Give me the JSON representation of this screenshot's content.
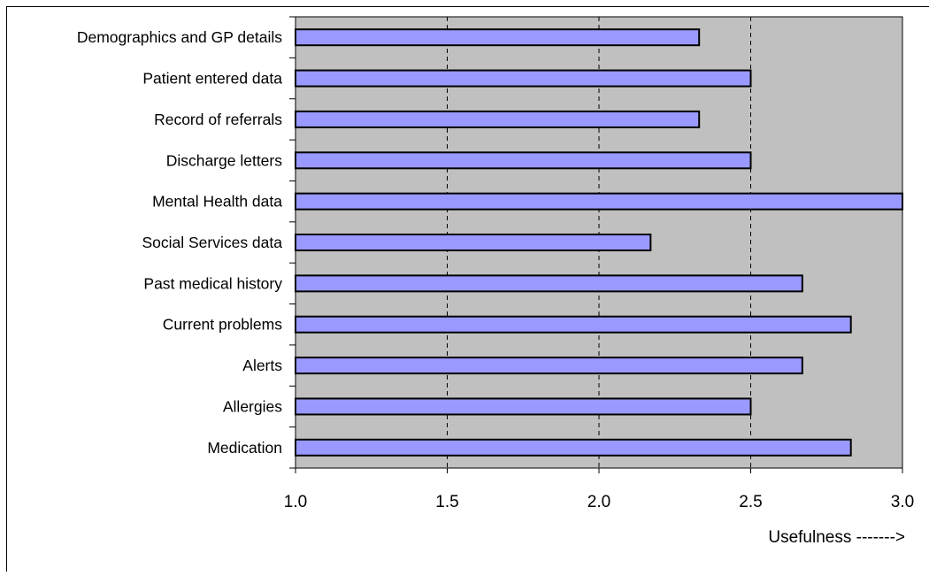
{
  "chart_data": {
    "type": "bar",
    "orientation": "horizontal",
    "categories": [
      "Demographics and GP details",
      "Patient entered data",
      "Record of referrals",
      "Discharge letters",
      "Mental Health data",
      "Social Services data",
      "Past medical history",
      "Current problems",
      "Alerts",
      "Allergies",
      "Medication"
    ],
    "values": [
      2.33,
      2.5,
      2.33,
      2.5,
      3.0,
      2.17,
      2.67,
      2.83,
      2.67,
      2.5,
      2.83
    ],
    "xlim": [
      1.0,
      3.0
    ],
    "xticks": [
      "1.0",
      "1.5",
      "2.0",
      "2.5",
      "3.0"
    ],
    "xlabel": "Usefulness ------->",
    "ylabel": "",
    "title": "",
    "grid": "vertical dashed",
    "colors": {
      "bar_fill": "#9999ff",
      "bar_stroke": "#000000",
      "plot_background": "#c0c0c0",
      "gridline": "#000000"
    }
  }
}
